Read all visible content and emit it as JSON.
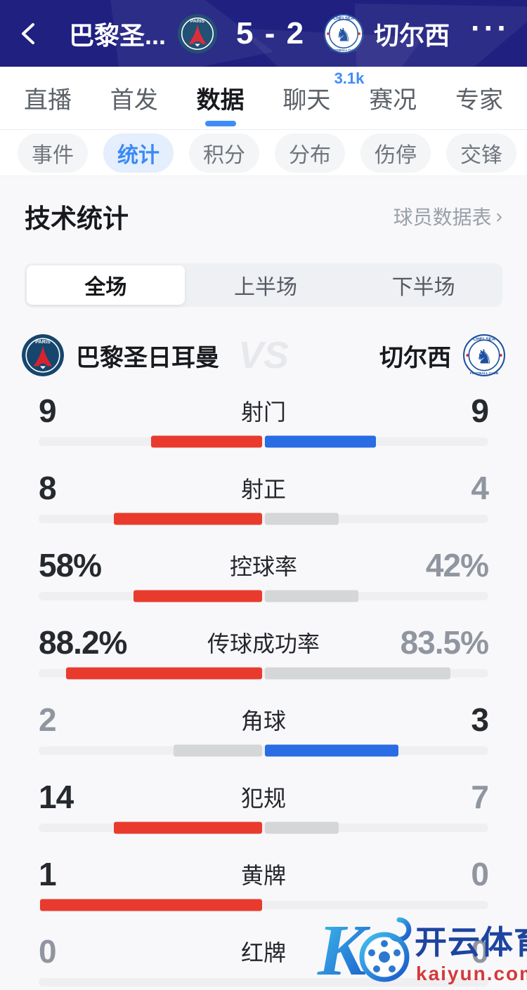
{
  "header": {
    "team_home_short": "巴黎圣...",
    "score": "5 - 2",
    "team_away_short": "切尔西"
  },
  "tabs": [
    {
      "label": "直播",
      "active": false
    },
    {
      "label": "首发",
      "active": false
    },
    {
      "label": "数据",
      "active": true
    },
    {
      "label": "聊天",
      "active": false,
      "badge": "3.1k"
    },
    {
      "label": "赛况",
      "active": false
    },
    {
      "label": "专家",
      "active": false
    }
  ],
  "subtabs": [
    {
      "label": "事件",
      "active": false
    },
    {
      "label": "统计",
      "active": true
    },
    {
      "label": "积分",
      "active": false
    },
    {
      "label": "分布",
      "active": false
    },
    {
      "label": "伤停",
      "active": false
    },
    {
      "label": "交锋",
      "active": false
    }
  ],
  "section": {
    "title": "技术统计",
    "link": "球员数据表",
    "link_arrow": "›"
  },
  "periods": [
    {
      "label": "全场",
      "active": true
    },
    {
      "label": "上半场",
      "active": false
    },
    {
      "label": "下半场",
      "active": false
    }
  ],
  "teams": {
    "home": "巴黎圣日耳曼",
    "away": "切尔西",
    "vs": "VS"
  },
  "stats": {
    "rows": [
      {
        "label": "射门",
        "home": "9",
        "away": "9",
        "home_strong": true,
        "away_strong": true,
        "left": {
          "color": "red",
          "frac": 0.5
        },
        "right": {
          "color": "blue",
          "frac": 0.5
        }
      },
      {
        "label": "射正",
        "home": "8",
        "away": "4",
        "home_strong": true,
        "away_strong": false,
        "left": {
          "color": "red",
          "frac": 0.667
        },
        "right": {
          "color": "gray",
          "frac": 0.333
        }
      },
      {
        "label": "控球率",
        "home": "58%",
        "away": "42%",
        "home_strong": true,
        "away_strong": false,
        "left": {
          "color": "red",
          "frac": 0.58
        },
        "right": {
          "color": "gray",
          "frac": 0.42
        }
      },
      {
        "label": "传球成功率",
        "home": "88.2%",
        "away": "83.5%",
        "home_strong": true,
        "away_strong": false,
        "left": {
          "color": "red",
          "frac": 0.882
        },
        "right": {
          "color": "gray",
          "frac": 0.835
        }
      },
      {
        "label": "角球",
        "home": "2",
        "away": "3",
        "home_strong": false,
        "away_strong": true,
        "left": {
          "color": "gray",
          "frac": 0.4
        },
        "right": {
          "color": "blue",
          "frac": 0.6
        }
      },
      {
        "label": "犯规",
        "home": "14",
        "away": "7",
        "home_strong": true,
        "away_strong": false,
        "left": {
          "color": "red",
          "frac": 0.667
        },
        "right": {
          "color": "gray",
          "frac": 0.333
        }
      },
      {
        "label": "黄牌",
        "home": "1",
        "away": "0",
        "home_strong": true,
        "away_strong": false,
        "left": {
          "color": "red",
          "frac": 1.0
        },
        "right": {
          "color": "gray",
          "frac": 0
        }
      },
      {
        "label": "红牌",
        "home": "0",
        "away": "0",
        "home_strong": false,
        "away_strong": false,
        "left": {
          "color": "gray",
          "frac": 0
        },
        "right": {
          "color": "gray",
          "frac": 0
        }
      }
    ]
  },
  "watermark": {
    "brand": "开云体育",
    "domain": "kaiyun.com"
  },
  "colors": {
    "header_bg": "#1f2080",
    "accent_blue": "#3f8cf6",
    "bar_red": "#e83b2d",
    "bar_blue": "#2a6ce3",
    "bar_gray": "#d5d6d8",
    "track": "#efeff1",
    "num_strong": "#26292e",
    "num_weak": "#9096a0",
    "watermark_blue": "#1d449f",
    "watermark_red": "#d43a3c"
  }
}
